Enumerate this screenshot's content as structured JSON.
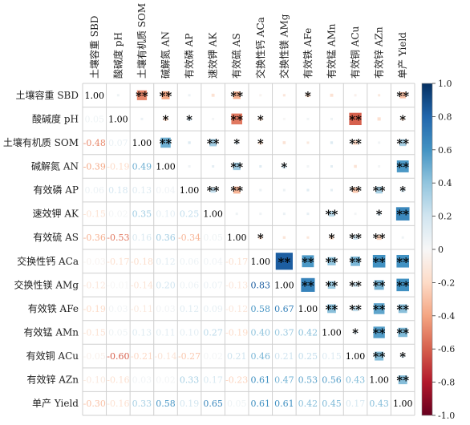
{
  "chart_data": {
    "type": "heatmap",
    "title": "",
    "variables": [
      "土壤容重 SBD",
      "酸碱度 pH",
      "土壤有机质 SOM",
      "碱解氮 AN",
      "有效磷 AP",
      "速效钾 AK",
      "有效硫 AS",
      "交换性钙 ACa",
      "交换性镁 AMg",
      "有效铁 AFe",
      "有效锰 AMn",
      "有效铜 ACu",
      "有效锌 AZn",
      "单产 Yield"
    ],
    "row_labels": [
      "土壤容重 SBD",
      "酸碱度 pH",
      "土壤有机质 SOM",
      "碱解氮 AN",
      "有效磷 AP",
      "速效钾 AK",
      "有效硫 AS",
      "交换性钙 ACa",
      "交换性镁 AMg",
      "有效铁 AFe",
      "有效锰 AMn",
      "有效铜 ACu",
      "有效锌 AZn",
      "单产 Yield"
    ],
    "column_labels": [
      "土壤容重 SBD",
      "酸碱度 pH",
      "土壤有机质 SOM",
      "碱解氮 AN",
      "有效磷 AP",
      "速效钾 AK",
      "有效硫 AS",
      "交换性钙 ACa",
      "交换性镁 AMg",
      "有效铁 AFe",
      "有效锰 AMn",
      "有效铜 ACu",
      "有效锌 AZn",
      "单产 Yield"
    ],
    "lower_triangle_labels": [
      [
        "1.00"
      ],
      [
        "0.05",
        "1.00"
      ],
      [
        "-0.48",
        "0.07",
        "1.00"
      ],
      [
        "-0.39",
        "-0.19",
        "0.49",
        "1.00"
      ],
      [
        "0.06",
        "0.18",
        "0.13",
        "0.04",
        "1.00"
      ],
      [
        "-0.15",
        "0.02",
        "0.35",
        "0.10",
        "0.25",
        "1.00"
      ],
      [
        "-0.36",
        "-0.53",
        "0.16",
        "0.36",
        "-0.34",
        "0.05",
        "1.00"
      ],
      [
        "-0.03",
        "-0.17",
        "-0.18",
        "0.12",
        "0.06",
        "0.04",
        "-0.17",
        "1.00"
      ],
      [
        "-0.12",
        "-0.01",
        "-0.14",
        "0.20",
        "0.06",
        "0.07",
        "-0.13",
        "0.83",
        "1.00"
      ],
      [
        "-0.19",
        "0.03",
        "-0.11",
        "0.03",
        "0.12",
        "0.09",
        "-0.12",
        "0.58",
        "0.67",
        "1.00"
      ],
      [
        "-0.15",
        "0.05",
        "0.13",
        "0.11",
        "0.10",
        "0.27",
        "-0.19",
        "0.40",
        "0.37",
        "0.42",
        "1.00"
      ],
      [
        "-0.05",
        "-0.60",
        "-0.21",
        "-0.14",
        "-0.27",
        "0.02",
        "0.21",
        "0.46",
        "0.21",
        "0.25",
        "0.15",
        "1.00"
      ],
      [
        "-0.10",
        "-0.16",
        "0.03",
        "0.02",
        "0.33",
        "0.17",
        "-0.23",
        "0.61",
        "0.47",
        "0.53",
        "0.56",
        "0.43",
        "1.00"
      ],
      [
        "-0.30",
        "-0.16",
        "0.33",
        "0.58",
        "0.19",
        "0.65",
        "0.05",
        "0.61",
        "0.61",
        "0.42",
        "0.45",
        "0.17",
        "0.43",
        "1.00"
      ]
    ],
    "upper_triangle_significance": [
      [
        "",
        "",
        "**",
        "**",
        "",
        "",
        "**",
        "",
        "",
        "*",
        "",
        "",
        "",
        "**"
      ],
      [
        "",
        "",
        "",
        "*",
        "*",
        "",
        "**",
        "*",
        "",
        "",
        "",
        "**",
        "",
        "*"
      ],
      [
        "",
        "",
        "",
        "**",
        "",
        "**",
        "*",
        "*",
        "",
        "",
        "",
        "**",
        "",
        "**"
      ],
      [
        "",
        "",
        "",
        "",
        "",
        "",
        "**",
        "",
        "*",
        "",
        "",
        "",
        "",
        "**"
      ],
      [
        "",
        "",
        "",
        "",
        "",
        "**",
        "**",
        "",
        "",
        "",
        "",
        "**",
        "**",
        "*"
      ],
      [
        "",
        "",
        "",
        "",
        "",
        "",
        "",
        "",
        "",
        "",
        "**",
        "",
        "*",
        "**"
      ],
      [
        "",
        "",
        "",
        "",
        "",
        "",
        "",
        "*",
        "",
        "",
        "*",
        "**",
        "**",
        ""
      ],
      [
        "",
        "",
        "",
        "",
        "",
        "",
        "",
        "",
        "**",
        "**",
        "**",
        "**",
        "**",
        "**"
      ],
      [
        "",
        "",
        "",
        "",
        "",
        "",
        "",
        "",
        "",
        "**",
        "**",
        "**",
        "**",
        "**"
      ],
      [
        "",
        "",
        "",
        "",
        "",
        "",
        "",
        "",
        "",
        "",
        "**",
        "**",
        "**",
        "**"
      ],
      [
        "",
        "",
        "",
        "",
        "",
        "",
        "",
        "",
        "",
        "",
        "",
        "*",
        "**",
        "**"
      ],
      [
        "",
        "",
        "",
        "",
        "",
        "",
        "",
        "",
        "",
        "",
        "",
        "",
        "**",
        "*"
      ],
      [
        "",
        "",
        "",
        "",
        "",
        "",
        "",
        "",
        "",
        "",
        "",
        "",
        "",
        "**"
      ],
      [
        "",
        "",
        "",
        "",
        "",
        "",
        "",
        "",
        "",
        "",
        "",
        "",
        "",
        ""
      ]
    ],
    "colorbar": {
      "min": -1.0,
      "max": 1.0,
      "ticks": [
        "1.0",
        "0.8",
        "0.6",
        "0.4",
        "0.2",
        "0",
        "-0.2",
        "-0.4",
        "-0.6",
        "-0.8",
        "-1.0"
      ],
      "colors": {
        "negative_strong": "#67001f",
        "negative_mid": "#d6604d",
        "neutral": "#f7f7f7",
        "positive_mid": "#4393c3",
        "positive_strong": "#053061"
      }
    },
    "grid": true,
    "colormap": "RdBu"
  }
}
